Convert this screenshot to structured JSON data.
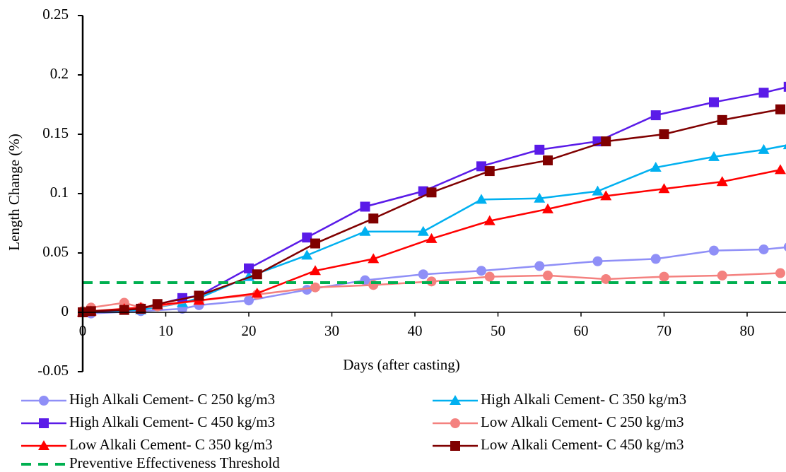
{
  "chart_data": {
    "type": "line",
    "xlabel": "Days (after casting)",
    "ylabel": "Length Change (%)",
    "xlim": [
      0,
      85
    ],
    "xticks": [
      0,
      10,
      20,
      30,
      40,
      50,
      60,
      70,
      80
    ],
    "ylim": [
      -0.05,
      0.25
    ],
    "yticks": [
      -0.05,
      0,
      0.05,
      0.1,
      0.15,
      0.2,
      0.25
    ],
    "grid": false,
    "legend": "bottom",
    "series": [
      {
        "name": "High Alkali Cement- C 250 kg/m3",
        "color": "#8f8ff7",
        "marker": "circle",
        "x": [
          0,
          1,
          7,
          12,
          14,
          20,
          27,
          34,
          41,
          48,
          55,
          62,
          69,
          76,
          82,
          85
        ],
        "values": [
          0,
          -0.001,
          0.001,
          0.003,
          0.006,
          0.01,
          0.019,
          0.027,
          0.032,
          0.035,
          0.039,
          0.043,
          0.045,
          0.052,
          0.053,
          0.055
        ]
      },
      {
        "name": "High Alkali Cement- C 350 kg/m3",
        "color": "#00b0f0",
        "marker": "triangle",
        "x": [
          0,
          7,
          12,
          14,
          20,
          27,
          34,
          41,
          48,
          55,
          62,
          69,
          76,
          82,
          85
        ],
        "values": [
          0,
          0.002,
          0.008,
          0.012,
          0.03,
          0.048,
          0.068,
          0.068,
          0.095,
          0.096,
          0.102,
          0.122,
          0.131,
          0.137,
          0.141
        ]
      },
      {
        "name": "High Alkali Cement- C 450 kg/m3",
        "color": "#5a1be8",
        "marker": "square",
        "x": [
          0,
          7,
          12,
          14,
          20,
          27,
          34,
          41,
          48,
          55,
          62,
          69,
          76,
          82,
          85
        ],
        "values": [
          0,
          0.003,
          0.012,
          0.014,
          0.037,
          0.063,
          0.089,
          0.102,
          0.123,
          0.137,
          0.144,
          0.166,
          0.177,
          0.185,
          0.19
        ]
      },
      {
        "name": "Low Alkali Cement- C 250 kg/m3",
        "color": "#f4817f",
        "marker": "circle",
        "x": [
          0,
          1,
          5,
          7,
          9,
          14,
          21,
          28,
          35,
          42,
          49,
          56,
          63,
          70,
          77,
          84
        ],
        "values": [
          0.001,
          0.004,
          0.008,
          0.004,
          0.005,
          0.01,
          0.015,
          0.021,
          0.023,
          0.026,
          0.03,
          0.031,
          0.028,
          0.03,
          0.031,
          0.033
        ]
      },
      {
        "name": "Low Alkali Cement- C 350 kg/m3",
        "color": "#ff0000",
        "marker": "triangle",
        "x": [
          0,
          1,
          5,
          7,
          9,
          14,
          21,
          28,
          35,
          42,
          49,
          56,
          63,
          70,
          77,
          84
        ],
        "values": [
          0,
          0.001,
          0.003,
          0.004,
          0.006,
          0.01,
          0.016,
          0.035,
          0.045,
          0.062,
          0.077,
          0.087,
          0.098,
          0.104,
          0.11,
          0.12
        ]
      },
      {
        "name": "Low Alkali Cement- C 450 kg/m3",
        "color": "#800000",
        "marker": "square",
        "x": [
          0,
          1,
          5,
          7,
          9,
          14,
          21,
          28,
          35,
          42,
          49,
          56,
          63,
          70,
          77,
          84
        ],
        "values": [
          0,
          0.001,
          0.002,
          0.003,
          0.007,
          0.014,
          0.032,
          0.058,
          0.079,
          0.101,
          0.119,
          0.128,
          0.144,
          0.15,
          0.162,
          0.171
        ]
      },
      {
        "name": "Preventive Effectiveness Threshold",
        "color": "#00b050",
        "dash": true,
        "x": [
          0,
          85
        ],
        "values": [
          0.025,
          0.025
        ]
      }
    ]
  }
}
